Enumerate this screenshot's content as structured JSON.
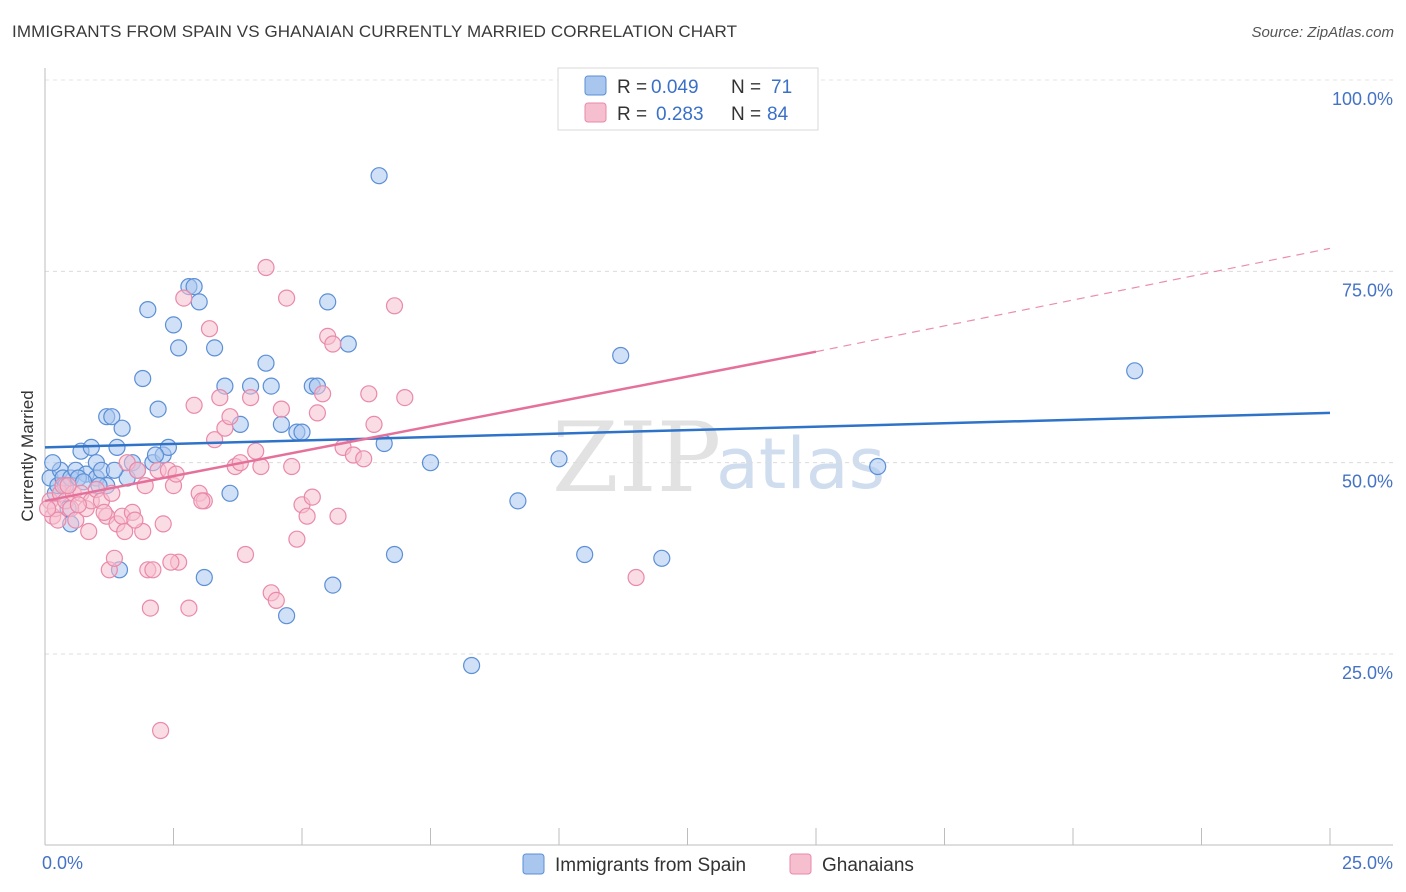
{
  "title": "IMMIGRANTS FROM SPAIN VS GHANAIAN CURRENTLY MARRIED CORRELATION CHART",
  "source": "Source: ZipAtlas.com",
  "watermark": {
    "zip": "ZIP",
    "atlas": "atlas"
  },
  "legend": {
    "r_label": "R =",
    "n_label": "N =",
    "series": [
      {
        "r": "0.049",
        "n": "71"
      },
      {
        "r": "0.283",
        "n": "84"
      }
    ]
  },
  "colors": {
    "blue_fill": "#a9c6ee",
    "blue_stroke": "#5b8fd6",
    "blue_line": "#2f73c9",
    "pink_fill": "#f6bfd0",
    "pink_stroke": "#ea89a9",
    "pink_line": "#e5719b"
  },
  "chart_data": {
    "type": "scatter",
    "title": "IMMIGRANTS FROM SPAIN VS GHANAIAN CURRENTLY MARRIED CORRELATION CHART",
    "xlabel": "",
    "ylabel": "Currently Married",
    "xlim": [
      0,
      25
    ],
    "ylim": [
      0,
      105
    ],
    "x_tick_labels": [
      "0.0%",
      "25.0%"
    ],
    "y_ticks": [
      25,
      50,
      75,
      100
    ],
    "y_tick_labels": [
      "25.0%",
      "50.0%",
      "75.0%",
      "100.0%"
    ],
    "grid": true,
    "legend_position": "top-center",
    "series": [
      {
        "name": "Immigrants from Spain",
        "r": 0.049,
        "n": 71,
        "trend": {
          "x0": 0,
          "y0": 52.0,
          "x1": 25,
          "y1": 56.5
        },
        "points": [
          [
            0.1,
            48
          ],
          [
            0.2,
            46
          ],
          [
            0.25,
            47
          ],
          [
            0.3,
            49
          ],
          [
            0.35,
            48
          ],
          [
            0.4,
            47
          ],
          [
            0.5,
            48
          ],
          [
            0.5,
            42
          ],
          [
            0.6,
            49
          ],
          [
            0.7,
            51.5
          ],
          [
            0.8,
            48.5
          ],
          [
            0.9,
            52
          ],
          [
            1.0,
            50
          ],
          [
            1.0,
            48
          ],
          [
            1.1,
            49
          ],
          [
            1.2,
            47
          ],
          [
            1.2,
            56
          ],
          [
            1.3,
            56
          ],
          [
            1.4,
            52
          ],
          [
            1.5,
            54.5
          ],
          [
            1.6,
            48
          ],
          [
            1.7,
            50
          ],
          [
            1.8,
            49
          ],
          [
            1.9,
            61
          ],
          [
            2.0,
            70
          ],
          [
            2.1,
            50
          ],
          [
            2.2,
            57
          ],
          [
            2.3,
            51
          ],
          [
            2.4,
            52
          ],
          [
            2.5,
            68
          ],
          [
            2.6,
            65
          ],
          [
            2.8,
            73
          ],
          [
            2.9,
            73
          ],
          [
            3.0,
            71
          ],
          [
            3.1,
            35
          ],
          [
            3.3,
            65
          ],
          [
            3.5,
            60
          ],
          [
            3.6,
            46
          ],
          [
            3.8,
            55
          ],
          [
            4.0,
            60
          ],
          [
            4.3,
            63
          ],
          [
            4.4,
            60
          ],
          [
            4.7,
            30
          ],
          [
            4.9,
            54
          ],
          [
            5.0,
            54
          ],
          [
            5.2,
            60
          ],
          [
            5.3,
            60
          ],
          [
            5.5,
            71
          ],
          [
            5.6,
            34
          ],
          [
            5.9,
            65.5
          ],
          [
            6.5,
            87.5
          ],
          [
            6.6,
            52.5
          ],
          [
            6.8,
            38
          ],
          [
            7.5,
            50
          ],
          [
            8.3,
            23.5
          ],
          [
            9.2,
            45
          ],
          [
            10.0,
            50.5
          ],
          [
            10.5,
            38
          ],
          [
            11.2,
            64
          ],
          [
            12.0,
            37.5
          ],
          [
            16.2,
            49.5
          ],
          [
            21.2,
            62
          ],
          [
            0.15,
            50
          ],
          [
            0.45,
            44
          ],
          [
            0.65,
            48
          ],
          [
            0.75,
            47.5
          ],
          [
            1.05,
            47
          ],
          [
            1.35,
            49
          ],
          [
            2.15,
            51
          ],
          [
            1.45,
            36
          ],
          [
            4.6,
            55
          ]
        ]
      },
      {
        "name": "Ghanaians",
        "r": 0.283,
        "n": 84,
        "trend": {
          "x0": 0,
          "y0": 45.0,
          "x1": 15,
          "y1": 64.5,
          "dash_x1": 25,
          "dash_y1": 78.0
        },
        "points": [
          [
            0.1,
            45
          ],
          [
            0.15,
            43
          ],
          [
            0.2,
            44
          ],
          [
            0.3,
            46
          ],
          [
            0.35,
            47
          ],
          [
            0.4,
            45
          ],
          [
            0.5,
            44
          ],
          [
            0.55,
            46
          ],
          [
            0.6,
            42.5
          ],
          [
            0.7,
            46
          ],
          [
            0.8,
            44
          ],
          [
            0.9,
            45
          ],
          [
            1.0,
            46.5
          ],
          [
            1.1,
            45
          ],
          [
            1.2,
            43
          ],
          [
            1.25,
            36
          ],
          [
            1.3,
            46
          ],
          [
            1.4,
            42
          ],
          [
            1.5,
            43
          ],
          [
            1.6,
            50
          ],
          [
            1.7,
            43.5
          ],
          [
            1.8,
            49
          ],
          [
            1.9,
            41
          ],
          [
            2.0,
            36
          ],
          [
            2.05,
            31
          ],
          [
            2.1,
            36
          ],
          [
            2.2,
            49
          ],
          [
            2.3,
            42
          ],
          [
            2.4,
            49
          ],
          [
            2.5,
            47
          ],
          [
            2.55,
            48.5
          ],
          [
            2.6,
            37
          ],
          [
            2.7,
            71.5
          ],
          [
            2.8,
            31
          ],
          [
            2.9,
            57.5
          ],
          [
            3.0,
            46
          ],
          [
            3.1,
            45
          ],
          [
            3.2,
            67.5
          ],
          [
            3.3,
            53
          ],
          [
            3.4,
            58.5
          ],
          [
            3.5,
            54.5
          ],
          [
            3.6,
            56
          ],
          [
            3.7,
            49.5
          ],
          [
            3.8,
            50
          ],
          [
            3.9,
            38
          ],
          [
            4.0,
            58.5
          ],
          [
            4.1,
            51.5
          ],
          [
            4.2,
            49.5
          ],
          [
            4.3,
            75.5
          ],
          [
            4.4,
            33
          ],
          [
            4.5,
            32
          ],
          [
            4.6,
            57
          ],
          [
            4.7,
            71.5
          ],
          [
            4.8,
            49.5
          ],
          [
            4.9,
            40
          ],
          [
            5.0,
            44.5
          ],
          [
            5.1,
            43
          ],
          [
            5.2,
            45.5
          ],
          [
            5.3,
            56.5
          ],
          [
            5.4,
            59
          ],
          [
            5.5,
            66.5
          ],
          [
            5.6,
            65.5
          ],
          [
            5.7,
            43
          ],
          [
            5.8,
            52
          ],
          [
            6.0,
            51
          ],
          [
            6.2,
            50.5
          ],
          [
            6.3,
            59
          ],
          [
            6.4,
            55
          ],
          [
            6.8,
            70.5
          ],
          [
            7.0,
            58.5
          ],
          [
            11.5,
            35
          ],
          [
            0.25,
            42.5
          ],
          [
            0.45,
            47
          ],
          [
            0.65,
            44.5
          ],
          [
            0.85,
            41
          ],
          [
            1.15,
            43.5
          ],
          [
            1.35,
            37.5
          ],
          [
            1.55,
            41
          ],
          [
            1.75,
            42.5
          ],
          [
            2.25,
            15
          ],
          [
            2.45,
            37
          ],
          [
            1.95,
            47
          ],
          [
            0.05,
            44
          ],
          [
            3.05,
            45
          ]
        ]
      }
    ]
  },
  "bottom_legend": [
    "Immigrants from Spain",
    "Ghanaians"
  ]
}
